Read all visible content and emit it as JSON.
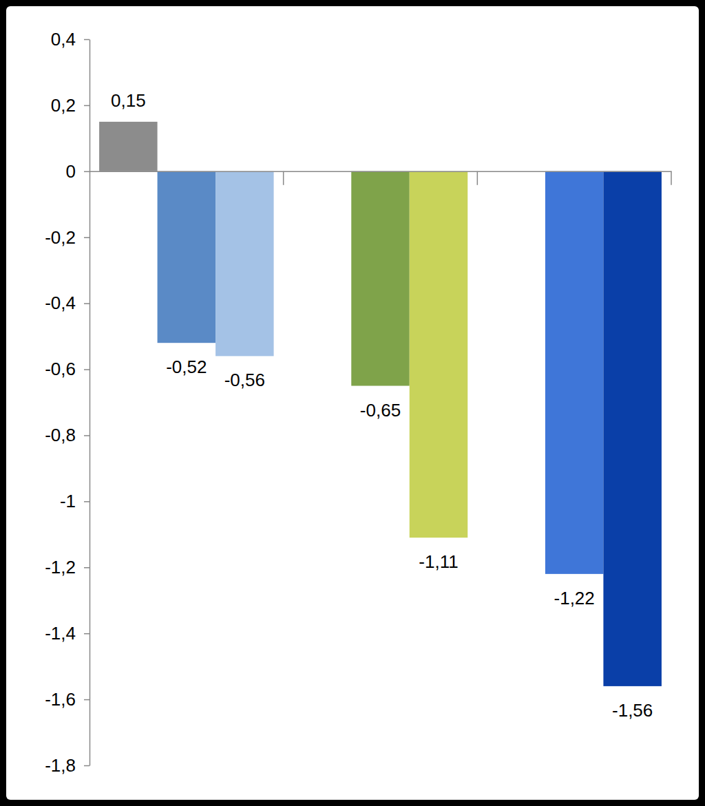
{
  "chart_data": {
    "type": "bar",
    "categories": [
      null,
      null,
      null
    ],
    "series": [
      {
        "color": "#8c8c8c",
        "values": [
          0.15,
          null,
          null
        ],
        "value_labels": [
          "0,15",
          null,
          null
        ]
      },
      {
        "colors": [
          "#5a8ac6",
          "#7fa34a",
          "#3f76d8"
        ],
        "values": [
          -0.52,
          -0.65,
          -1.22
        ],
        "value_labels": [
          "-0,52",
          "-0,65",
          "-1,22"
        ]
      },
      {
        "colors": [
          "#a4c2e6",
          "#c8d35a",
          "#0a3fa8"
        ],
        "values": [
          -0.56,
          -1.11,
          -1.56
        ],
        "value_labels": [
          "-0,56",
          "-1,11",
          "-1,56"
        ]
      }
    ],
    "ylim": [
      -1.8,
      0.4
    ],
    "yticks": [
      {
        "value": 0.4,
        "label": "0,4"
      },
      {
        "value": 0.2,
        "label": "0,2"
      },
      0,
      {
        "value": -0.2,
        "label": "-0,2"
      },
      {
        "value": -0.4,
        "label": "-0,4"
      },
      {
        "value": -0.6,
        "label": "-0,6"
      },
      {
        "value": -0.8,
        "label": "-0,8"
      },
      -1,
      {
        "value": -1.2,
        "label": "-1,2"
      },
      {
        "value": -1.4,
        "label": "-1,4"
      },
      {
        "value": -1.6,
        "label": "-1,6"
      },
      {
        "value": -1.8,
        "label": "-1,8"
      }
    ],
    "grid": false,
    "data_labels": true
  }
}
